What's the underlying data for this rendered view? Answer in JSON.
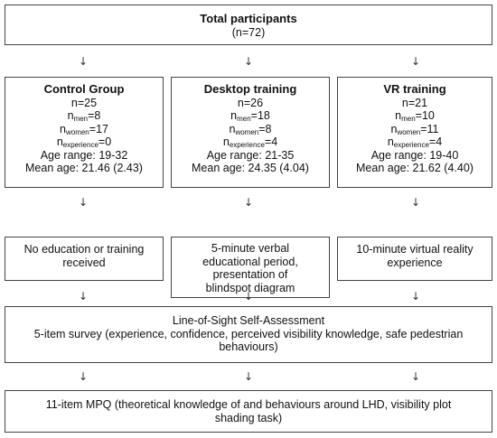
{
  "total": {
    "title": "Total participants",
    "n": "(n=72)"
  },
  "groups": [
    {
      "title": "Control Group",
      "n": "n=25",
      "n_men": "=8",
      "n_women": "=17",
      "n_experience": "=0",
      "age_range": "Age range: 19-32",
      "mean_age": "Mean age: 21.46 (2.43)",
      "intervention": [
        "No education or training",
        "received"
      ]
    },
    {
      "title": "Desktop training",
      "n": "n=26",
      "n_men": "=18",
      "n_women": "=8",
      "n_experience": "=4",
      "age_range": "Age range: 21-35",
      "mean_age": "Mean age: 24.35 (4.04)",
      "intervention": [
        "5-minute verbal",
        "educational period,",
        "presentation of",
        "blindspot diagram"
      ]
    },
    {
      "title": "VR training",
      "n": "n=21",
      "n_men": "=10",
      "n_women": "=11",
      "n_experience": "=4",
      "age_range": "Age range: 19-40",
      "mean_age": "Mean age: 21.62 (4.40)",
      "intervention": [
        "10-minute virtual reality",
        "experience"
      ]
    }
  ],
  "subscripts": {
    "men": "men",
    "women": "women",
    "experience": "experience"
  },
  "n_symbol": "n",
  "arrow_glyph": "↓",
  "survey": {
    "line1": "Line-of-Sight Self-Assessment",
    "line2": "5-item survey (experience, confidence, perceived visibility knowledge, safe pedestrian",
    "line3": "behaviours)"
  },
  "mpq": {
    "line1": "11-item MPQ (theoretical knowledge of and behaviours around LHD, visibility plot",
    "line2": "shading task)"
  }
}
